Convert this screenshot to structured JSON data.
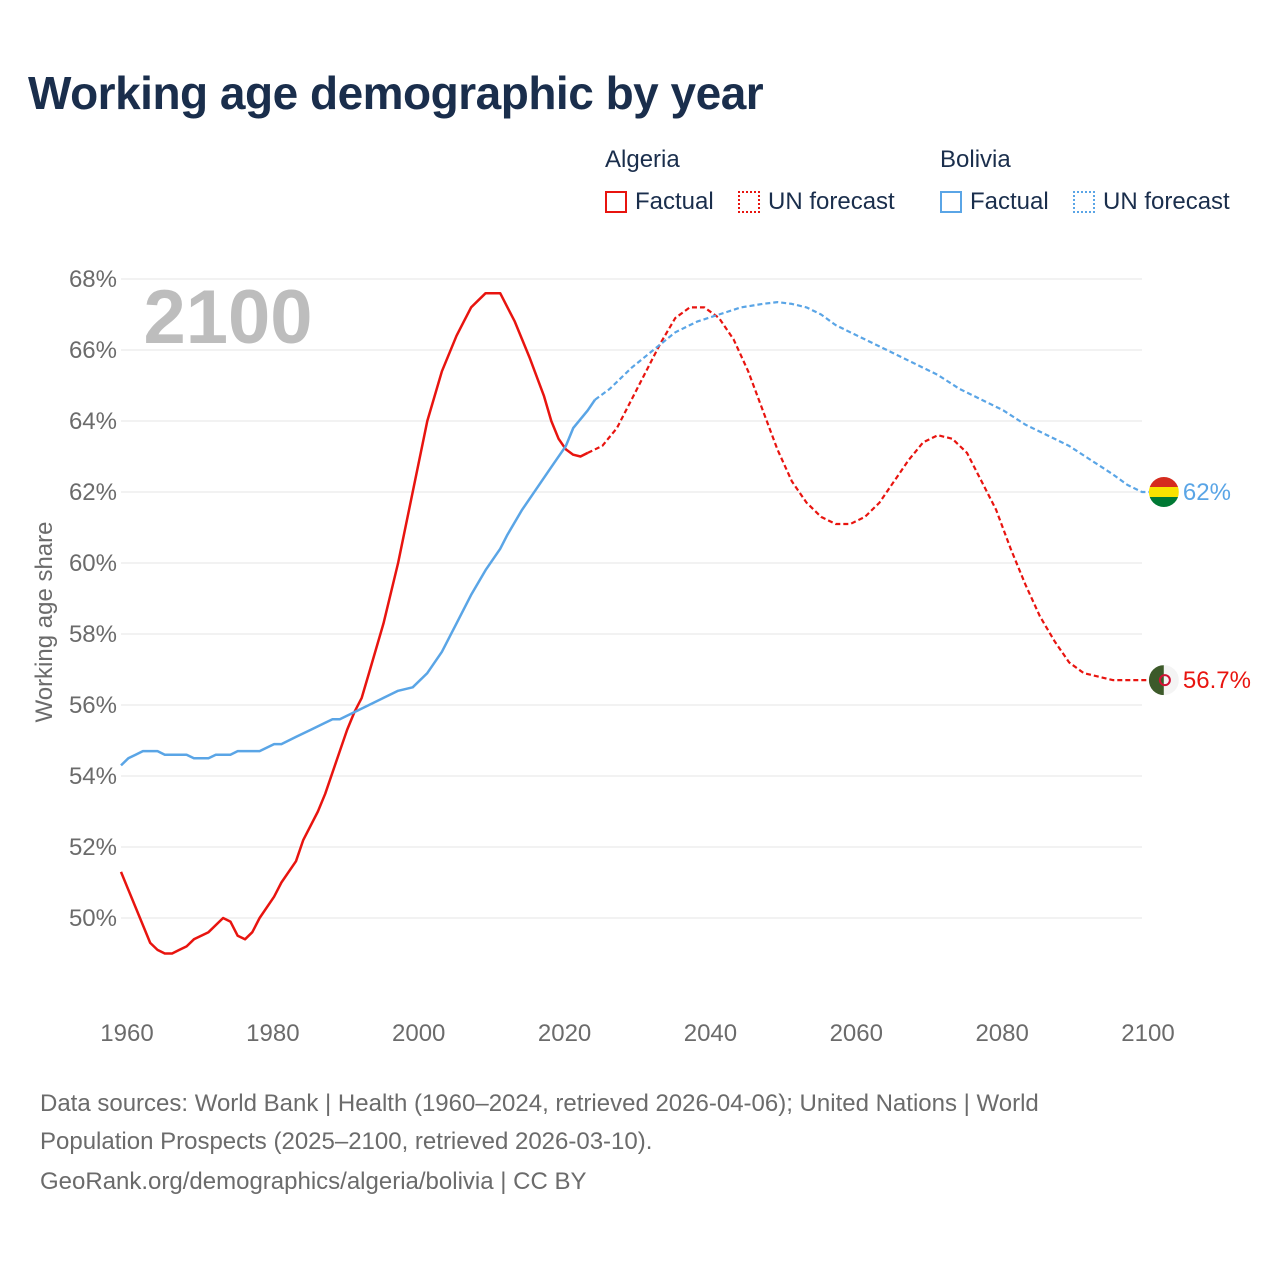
{
  "title": "Working age demographic by year",
  "legend": {
    "algeria": {
      "label": "Algeria",
      "factual": "Factual",
      "forecast": "UN forecast",
      "color": "#e8140f"
    },
    "bolivia": {
      "label": "Bolivia",
      "factual": "Factual",
      "forecast": "UN forecast",
      "color": "#5aa5e6"
    }
  },
  "footer": {
    "line1": "Data sources: World Bank | Health (1960–2024, retrieved 2026-04-06); United Nations | World",
    "line2": "Population Prospects (2025–2100, retrieved 2026-03-10).",
    "line3": "GeoRank.org/demographics/algeria/bolivia | CC BY"
  },
  "chart_data": {
    "type": "line",
    "year_label": "2100",
    "ylabel": "Working age share",
    "xlim": [
      1960,
      2100
    ],
    "ylim": [
      48,
      68
    ],
    "x_ticks": [
      1960,
      1980,
      2000,
      2020,
      2040,
      2060,
      2080,
      2100
    ],
    "y_ticks": [
      {
        "value": 50,
        "label": "50%"
      },
      {
        "value": 52,
        "label": "52%"
      },
      {
        "value": 54,
        "label": "54%"
      },
      {
        "value": 56,
        "label": "56%"
      },
      {
        "value": 58,
        "label": "58%"
      },
      {
        "value": 60,
        "label": "60%"
      },
      {
        "value": 62,
        "label": "62%"
      },
      {
        "value": 64,
        "label": "64%"
      },
      {
        "value": 66,
        "label": "66%"
      },
      {
        "value": 68,
        "label": "68%"
      }
    ],
    "series": [
      {
        "name": "Algeria",
        "color": "#e8140f",
        "end_label": "56.7%",
        "factual": [
          [
            1960,
            51.3
          ],
          [
            1962,
            50.3
          ],
          [
            1964,
            49.3
          ],
          [
            1965,
            49.1
          ],
          [
            1966,
            49.0
          ],
          [
            1967,
            49.0
          ],
          [
            1968,
            49.1
          ],
          [
            1969,
            49.2
          ],
          [
            1970,
            49.4
          ],
          [
            1972,
            49.6
          ],
          [
            1974,
            50.0
          ],
          [
            1975,
            49.9
          ],
          [
            1976,
            49.5
          ],
          [
            1977,
            49.4
          ],
          [
            1978,
            49.6
          ],
          [
            1979,
            50.0
          ],
          [
            1981,
            50.6
          ],
          [
            1982,
            51.0
          ],
          [
            1984,
            51.6
          ],
          [
            1985,
            52.2
          ],
          [
            1987,
            53.0
          ],
          [
            1988,
            53.5
          ],
          [
            1990,
            54.7
          ],
          [
            1991,
            55.3
          ],
          [
            1992,
            55.8
          ],
          [
            1993,
            56.2
          ],
          [
            1994,
            56.9
          ],
          [
            1996,
            58.3
          ],
          [
            1998,
            60.0
          ],
          [
            2000,
            62.0
          ],
          [
            2002,
            64.0
          ],
          [
            2004,
            65.4
          ],
          [
            2006,
            66.4
          ],
          [
            2007,
            66.8
          ],
          [
            2008,
            67.2
          ],
          [
            2009,
            67.4
          ],
          [
            2010,
            67.6
          ],
          [
            2012,
            67.6
          ],
          [
            2013,
            67.2
          ],
          [
            2014,
            66.8
          ],
          [
            2016,
            65.8
          ],
          [
            2018,
            64.7
          ],
          [
            2019,
            64.0
          ],
          [
            2020,
            63.5
          ],
          [
            2021,
            63.2
          ],
          [
            2022,
            63.05
          ],
          [
            2023,
            63.0
          ],
          [
            2024,
            63.1
          ]
        ],
        "forecast": [
          [
            2024,
            63.1
          ],
          [
            2026,
            63.3
          ],
          [
            2028,
            63.8
          ],
          [
            2030,
            64.6
          ],
          [
            2032,
            65.4
          ],
          [
            2034,
            66.2
          ],
          [
            2036,
            66.9
          ],
          [
            2038,
            67.2
          ],
          [
            2040,
            67.2
          ],
          [
            2042,
            66.9
          ],
          [
            2044,
            66.3
          ],
          [
            2046,
            65.4
          ],
          [
            2048,
            64.3
          ],
          [
            2050,
            63.2
          ],
          [
            2052,
            62.3
          ],
          [
            2054,
            61.7
          ],
          [
            2056,
            61.3
          ],
          [
            2058,
            61.1
          ],
          [
            2060,
            61.1
          ],
          [
            2062,
            61.3
          ],
          [
            2064,
            61.7
          ],
          [
            2066,
            62.3
          ],
          [
            2068,
            62.9
          ],
          [
            2070,
            63.4
          ],
          [
            2072,
            63.6
          ],
          [
            2074,
            63.5
          ],
          [
            2076,
            63.1
          ],
          [
            2078,
            62.3
          ],
          [
            2080,
            61.5
          ],
          [
            2082,
            60.4
          ],
          [
            2084,
            59.4
          ],
          [
            2086,
            58.5
          ],
          [
            2088,
            57.8
          ],
          [
            2090,
            57.2
          ],
          [
            2092,
            56.9
          ],
          [
            2094,
            56.8
          ],
          [
            2096,
            56.7
          ],
          [
            2098,
            56.7
          ],
          [
            2100,
            56.7
          ],
          [
            2103,
            56.7
          ]
        ]
      },
      {
        "name": "Bolivia",
        "color": "#5aa5e6",
        "end_label": "62%",
        "factual": [
          [
            1960,
            54.3
          ],
          [
            1961,
            54.5
          ],
          [
            1962,
            54.6
          ],
          [
            1963,
            54.7
          ],
          [
            1965,
            54.7
          ],
          [
            1966,
            54.6
          ],
          [
            1969,
            54.6
          ],
          [
            1970,
            54.5
          ],
          [
            1972,
            54.5
          ],
          [
            1973,
            54.6
          ],
          [
            1975,
            54.6
          ],
          [
            1976,
            54.7
          ],
          [
            1979,
            54.7
          ],
          [
            1981,
            54.9
          ],
          [
            1982,
            54.9
          ],
          [
            1984,
            55.1
          ],
          [
            1986,
            55.3
          ],
          [
            1988,
            55.5
          ],
          [
            1989,
            55.6
          ],
          [
            1990,
            55.6
          ],
          [
            1992,
            55.8
          ],
          [
            1994,
            56.0
          ],
          [
            1996,
            56.2
          ],
          [
            1998,
            56.4
          ],
          [
            2000,
            56.5
          ],
          [
            2002,
            56.9
          ],
          [
            2004,
            57.5
          ],
          [
            2006,
            58.3
          ],
          [
            2008,
            59.1
          ],
          [
            2010,
            59.8
          ],
          [
            2012,
            60.4
          ],
          [
            2013,
            60.8
          ],
          [
            2015,
            61.5
          ],
          [
            2017,
            62.1
          ],
          [
            2019,
            62.7
          ],
          [
            2021,
            63.3
          ],
          [
            2022,
            63.8
          ],
          [
            2024,
            64.3
          ],
          [
            2025,
            64.6
          ]
        ],
        "forecast": [
          [
            2025,
            64.6
          ],
          [
            2027,
            64.9
          ],
          [
            2030,
            65.5
          ],
          [
            2033,
            66.0
          ],
          [
            2036,
            66.5
          ],
          [
            2039,
            66.8
          ],
          [
            2042,
            67.0
          ],
          [
            2045,
            67.2
          ],
          [
            2048,
            67.3
          ],
          [
            2050,
            67.35
          ],
          [
            2052,
            67.3
          ],
          [
            2054,
            67.2
          ],
          [
            2056,
            67.0
          ],
          [
            2058,
            66.7
          ],
          [
            2060,
            66.5
          ],
          [
            2063,
            66.2
          ],
          [
            2066,
            65.9
          ],
          [
            2069,
            65.6
          ],
          [
            2072,
            65.3
          ],
          [
            2075,
            64.9
          ],
          [
            2078,
            64.6
          ],
          [
            2081,
            64.3
          ],
          [
            2084,
            63.9
          ],
          [
            2087,
            63.6
          ],
          [
            2090,
            63.3
          ],
          [
            2093,
            62.9
          ],
          [
            2096,
            62.5
          ],
          [
            2098,
            62.2
          ],
          [
            2100,
            62.0
          ],
          [
            2103,
            62.0
          ]
        ]
      }
    ]
  }
}
